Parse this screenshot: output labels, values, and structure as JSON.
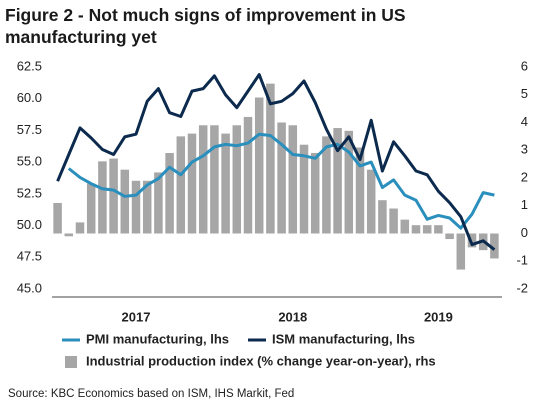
{
  "chart_data": {
    "type": "bar-line",
    "title": "Figure 2 - Not much signs of improvement in US manufacturing yet",
    "source": "Source: KBC Economics based on ISM, IHS Markit, Fed",
    "categories": [
      null,
      null,
      null,
      null,
      null,
      null,
      null,
      "2017",
      null,
      null,
      null,
      null,
      null,
      null,
      null,
      null,
      null,
      null,
      null,
      null,
      null,
      "2018",
      null,
      null,
      null,
      null,
      null,
      null,
      null,
      null,
      null,
      null,
      null,
      null,
      "2019",
      null,
      null,
      null,
      null,
      null
    ],
    "series": [
      {
        "name": "Industrial production index (% change year-on-year), rhs",
        "type": "bar",
        "axis": "y2",
        "color": "#a6a6a6",
        "values": [
          1.1,
          -0.1,
          0.4,
          1.8,
          2.6,
          2.7,
          2.3,
          1.9,
          1.9,
          2.2,
          2.9,
          3.5,
          3.6,
          3.9,
          3.9,
          3.6,
          3.9,
          4.2,
          4.9,
          5.4,
          4.0,
          3.9,
          3.2,
          2.9,
          3.5,
          3.8,
          3.7,
          3.1,
          2.3,
          1.2,
          0.9,
          0.5,
          0.3,
          0.3,
          0.3,
          -0.2,
          -1.3,
          -0.5,
          -0.6,
          -0.9
        ]
      },
      {
        "name": "PMI manufacturing, lhs",
        "type": "line",
        "color": "#2a8fbd",
        "values": [
          null,
          54.5,
          53.8,
          53.3,
          52.9,
          52.8,
          52.3,
          52.4,
          53.2,
          53.7,
          54.6,
          54.0,
          55.0,
          55.5,
          56.2,
          56.4,
          56.3,
          56.5,
          57.2,
          57.1,
          56.4,
          55.6,
          55.5,
          55.3,
          56.2,
          56.4,
          55.8,
          54.7,
          55.0,
          53.0,
          53.6,
          52.4,
          52.0,
          50.5,
          50.8,
          50.6,
          49.8,
          50.9,
          52.6,
          52.4
        ]
      },
      {
        "name": "ISM manufacturing, lhs",
        "type": "line",
        "color": "#0b2a4d",
        "values": [
          53.5,
          55.6,
          57.7,
          56.9,
          56.0,
          55.6,
          57.0,
          57.2,
          59.8,
          60.8,
          58.9,
          58.6,
          60.6,
          60.8,
          61.8,
          60.3,
          59.3,
          60.6,
          61.9,
          59.6,
          59.8,
          60.4,
          61.4,
          59.7,
          57.6,
          55.9,
          57.0,
          55.2,
          58.3,
          54.3,
          56.6,
          55.5,
          54.3,
          54.0,
          52.7,
          51.8,
          50.7,
          48.5,
          48.8,
          48.1
        ]
      }
    ],
    "ylim": [
      45,
      62.5
    ],
    "yticks": [
      {
        "value": 45,
        "label": "45.0"
      },
      47.5,
      {
        "value": 50,
        "label": "50.0"
      },
      52.5,
      {
        "value": 55,
        "label": "55.0"
      },
      57.5,
      {
        "value": 60,
        "label": "60.0"
      },
      62.5
    ],
    "y2lim": [
      -2,
      6
    ],
    "y2ticks": [
      -2,
      -1,
      0,
      1,
      2,
      3,
      4,
      5,
      6
    ],
    "grid": false
  }
}
